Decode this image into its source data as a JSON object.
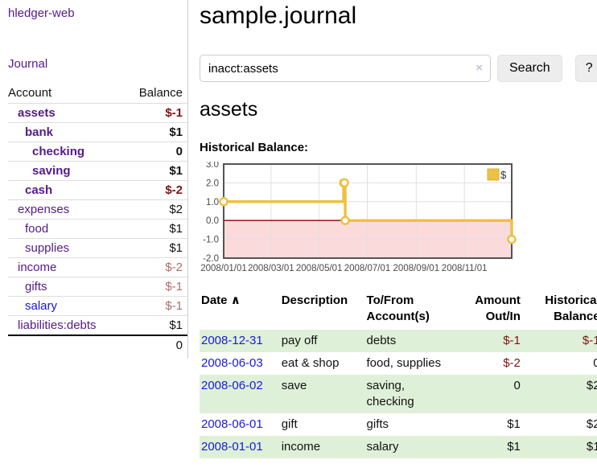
{
  "sidebar": {
    "brand": "hledger-web",
    "journal_label": "Journal",
    "table": {
      "headers": {
        "account": "Account",
        "balance": "Balance"
      },
      "accounts": [
        {
          "name": "assets",
          "balance": "$-1"
        },
        {
          "name": "bank",
          "balance": "$1"
        },
        {
          "name": "checking",
          "balance": "0"
        },
        {
          "name": "saving",
          "balance": "$1"
        },
        {
          "name": "cash",
          "balance": "$-2"
        },
        {
          "name": "expenses",
          "balance": "$2"
        },
        {
          "name": "food",
          "balance": "$1"
        },
        {
          "name": "supplies",
          "balance": "$1"
        },
        {
          "name": "income",
          "balance": "$-2"
        },
        {
          "name": "gifts",
          "balance": "$-1"
        },
        {
          "name": "salary",
          "balance": "$-1"
        },
        {
          "name": "liabilities:debts",
          "balance": "$1"
        }
      ],
      "total": "0"
    }
  },
  "header": {
    "title": "sample.journal"
  },
  "search": {
    "value": "inacct:assets",
    "clear_icon": "×",
    "button_label": "Search",
    "help_label": "?"
  },
  "account_page": {
    "heading": "assets",
    "chart_label": "Historical Balance:"
  },
  "chart_data": {
    "type": "line",
    "title": "Historical Balance:",
    "steps": true,
    "grid": true,
    "legend_position": "top-right",
    "x_range": [
      "2008/01/01",
      "2008/12/31"
    ],
    "ylim": [
      -2.0,
      3.0
    ],
    "y_ticks": [
      "3.0",
      "2.0",
      "1.0",
      "0.0",
      "-1.0",
      "-2.0"
    ],
    "x_ticks": [
      "2008/01/01",
      "2008/03/01",
      "2008/05/01",
      "2008/07/01",
      "2008/09/01",
      "2008/11/01"
    ],
    "zero_line_color": "#8b0000",
    "negative_region_color": "#fbdadb",
    "grid_color": "#e0e0e0",
    "border_color": "#545454",
    "series": [
      {
        "name": "$",
        "color": "#edc240",
        "points": [
          {
            "date": "2008/01/01",
            "value": 1
          },
          {
            "date": "2008/06/01",
            "value": 2
          },
          {
            "date": "2008/06/02",
            "value": 2
          },
          {
            "date": "2008/06/03",
            "value": 0
          },
          {
            "date": "2008/12/31",
            "value": -1
          }
        ]
      }
    ]
  },
  "register": {
    "headers": {
      "date": "Date",
      "sort_icon": "∧",
      "description": "Description",
      "tofrom": "To/From Account(s)",
      "amount": "Amount Out/In",
      "balance": "Historical Balance"
    },
    "rows": [
      {
        "date": "2008-12-31",
        "description": "pay off",
        "accounts": "debts",
        "amount": "$-1",
        "balance": "$-1"
      },
      {
        "date": "2008-06-03",
        "description": "eat & shop",
        "accounts": "food, supplies",
        "amount": "$-2",
        "balance": "0"
      },
      {
        "date": "2008-06-02",
        "description": "save",
        "accounts": "saving,\nchecking",
        "amount": "0",
        "balance": "$2"
      },
      {
        "date": "2008-06-01",
        "description": "gift",
        "accounts": "gifts",
        "amount": "$1",
        "balance": "$2"
      },
      {
        "date": "2008-01-01",
        "description": "income",
        "accounts": "salary",
        "amount": "$1",
        "balance": "$1"
      }
    ]
  }
}
